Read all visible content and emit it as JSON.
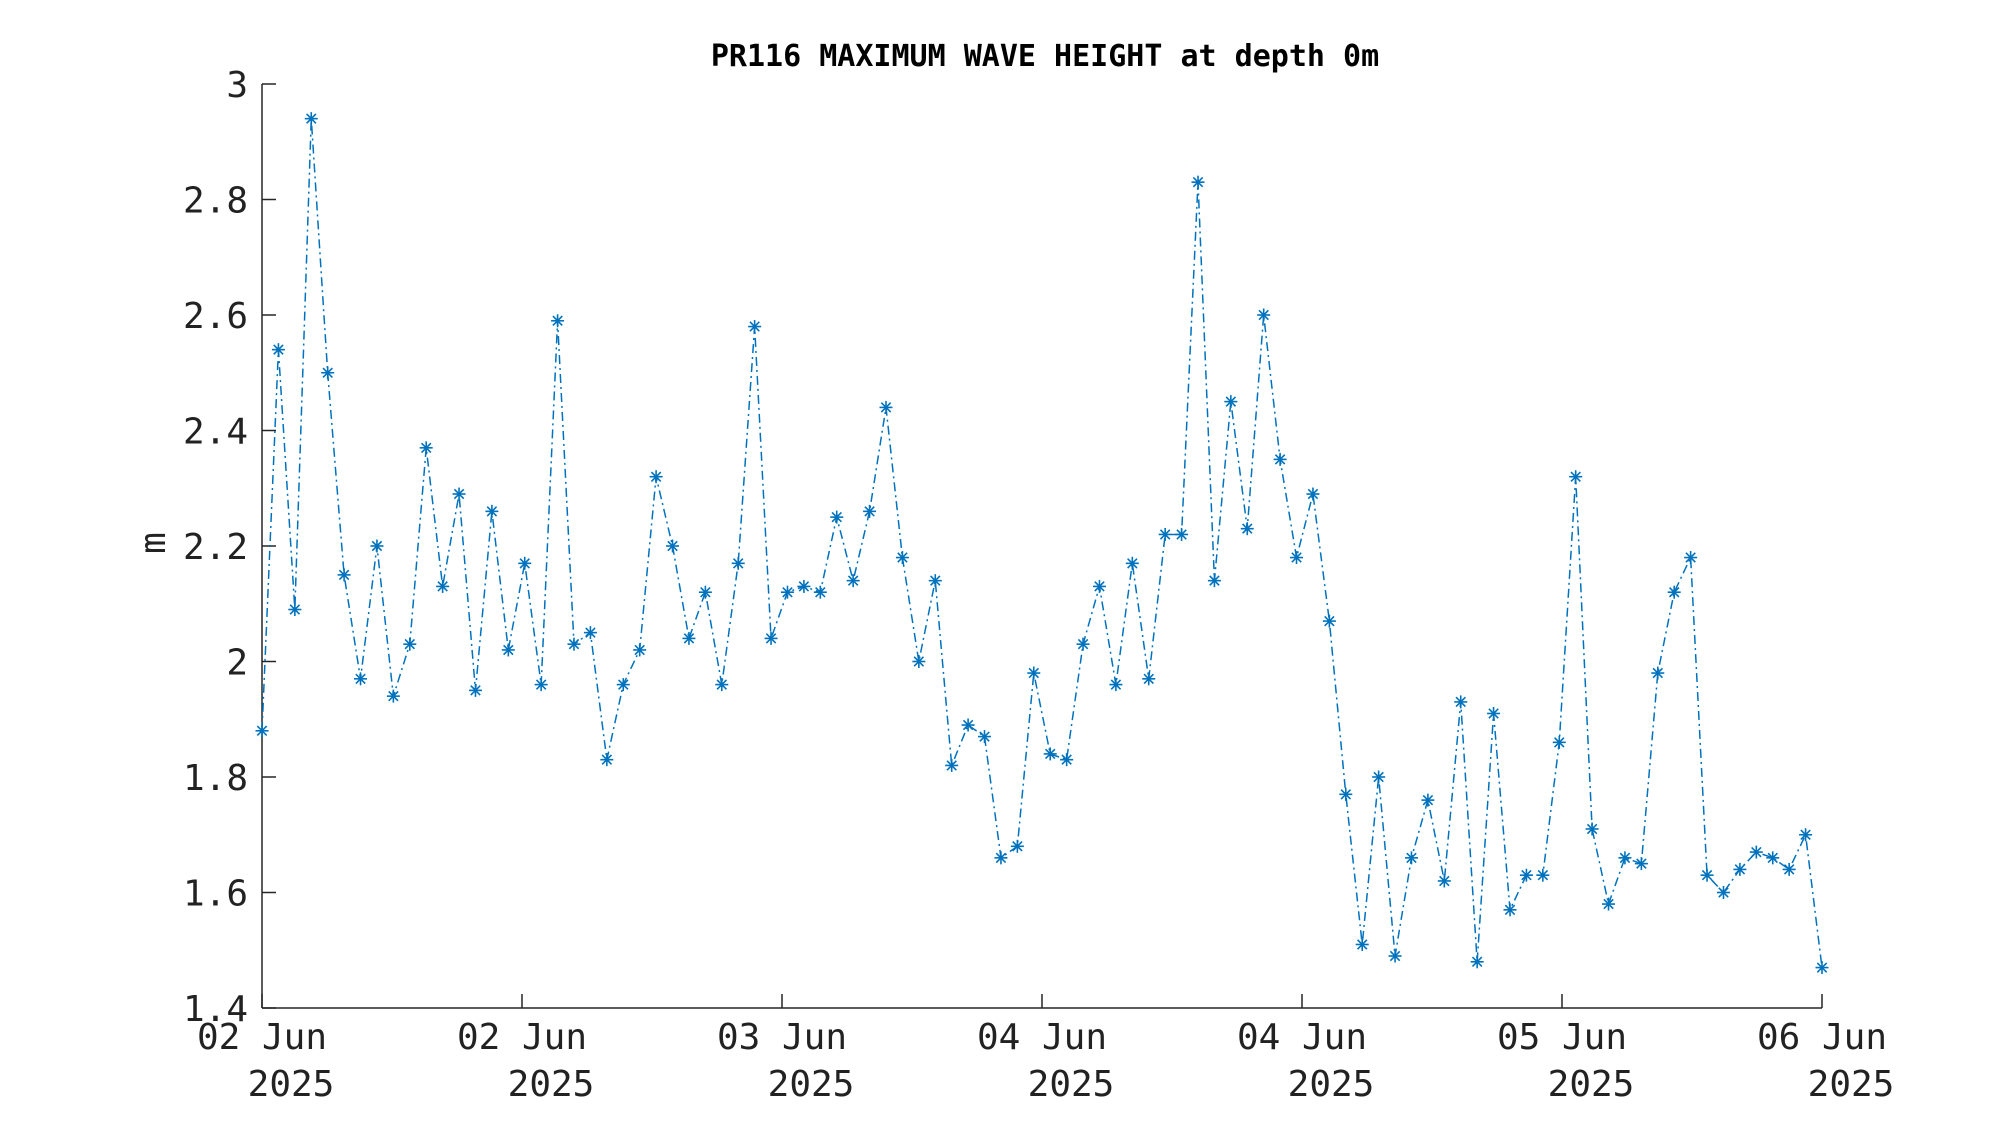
{
  "chart_data": {
    "type": "line",
    "title": "PR116 MAXIMUM WAVE HEIGHT at depth 0m",
    "ylabel": "m",
    "xlabel": "",
    "ylim": [
      1.4,
      3.0
    ],
    "yticks": [
      "1.4",
      "1.6",
      "1.8",
      "2",
      "2.2",
      "2.4",
      "2.6",
      "2.8",
      "3"
    ],
    "xlim": [
      "2025-06-02T00:00",
      "2025-06-06T00:00"
    ],
    "xticks": [
      {
        "line1": "02 Jun",
        "line2": "2025"
      },
      {
        "line1": "02 Jun",
        "line2": "2025"
      },
      {
        "line1": "03 Jun",
        "line2": "2025"
      },
      {
        "line1": "04 Jun",
        "line2": "2025"
      },
      {
        "line1": "04 Jun",
        "line2": "2025"
      },
      {
        "line1": "05 Jun",
        "line2": "2025"
      },
      {
        "line1": "06 Jun",
        "line2": "2025"
      }
    ],
    "grid": false,
    "legend": "none",
    "marker": "asterisk",
    "line_style": "dash-dot",
    "color": "#0072BD",
    "series": [
      {
        "values": [
          1.88,
          2.54,
          2.09,
          2.94,
          2.5,
          2.15,
          1.97,
          2.2,
          1.94,
          2.03,
          2.37,
          2.13,
          2.29,
          1.95,
          2.26,
          2.02,
          2.17,
          1.96,
          2.59,
          2.03,
          2.05,
          1.83,
          1.96,
          2.02,
          2.32,
          2.2,
          2.04,
          2.12,
          1.96,
          2.17,
          2.58,
          2.04,
          2.12,
          2.13,
          2.12,
          2.25,
          2.14,
          2.26,
          2.44,
          2.18,
          2.0,
          2.14,
          1.82,
          1.89,
          1.87,
          1.66,
          1.68,
          1.98,
          1.84,
          1.83,
          2.03,
          2.13,
          1.96,
          2.17,
          1.97,
          2.22,
          2.22,
          2.83,
          2.14,
          2.45,
          2.23,
          2.6,
          2.35,
          2.18,
          2.29,
          2.07,
          1.77,
          1.51,
          1.8,
          1.49,
          1.66,
          1.76,
          1.62,
          1.93,
          1.48,
          1.91,
          1.57,
          1.63,
          1.63,
          1.86,
          2.32,
          1.71,
          1.58,
          1.66,
          1.65,
          1.98,
          2.12,
          2.18,
          1.63,
          1.6,
          1.64,
          1.67,
          1.66,
          1.64,
          1.7,
          1.47
        ]
      }
    ]
  }
}
